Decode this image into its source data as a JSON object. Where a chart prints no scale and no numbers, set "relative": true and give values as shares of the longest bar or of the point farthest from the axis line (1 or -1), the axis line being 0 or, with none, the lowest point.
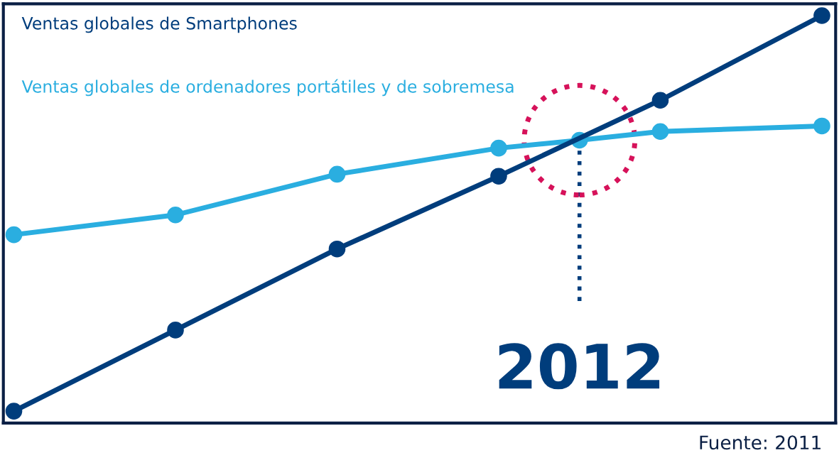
{
  "chart_data": {
    "type": "line",
    "relative": true,
    "categories": [
      null,
      null,
      null,
      null,
      null,
      null,
      null,
      null,
      null,
      null,
      null
    ],
    "series": [
      {
        "name": "Ventas globales de Smartphones",
        "color": "#003d7c",
        "values": [
          0,
          null,
          0.205,
          null,
          0.41,
          null,
          0.594,
          null,
          0.786,
          null,
          1
        ]
      },
      {
        "name": "Ventas globales de ordenadores portátiles y de sobremesa",
        "color": "#2aaee0",
        "values": [
          0.446,
          null,
          0.496,
          null,
          0.599,
          null,
          0.665,
          0.685,
          0.707,
          null,
          0.721
        ]
      }
    ],
    "marker": "circle",
    "line_style": "solid",
    "grid": false,
    "legend": false,
    "annotations": [
      "2012",
      "Fuente: 2011"
    ]
  }
}
